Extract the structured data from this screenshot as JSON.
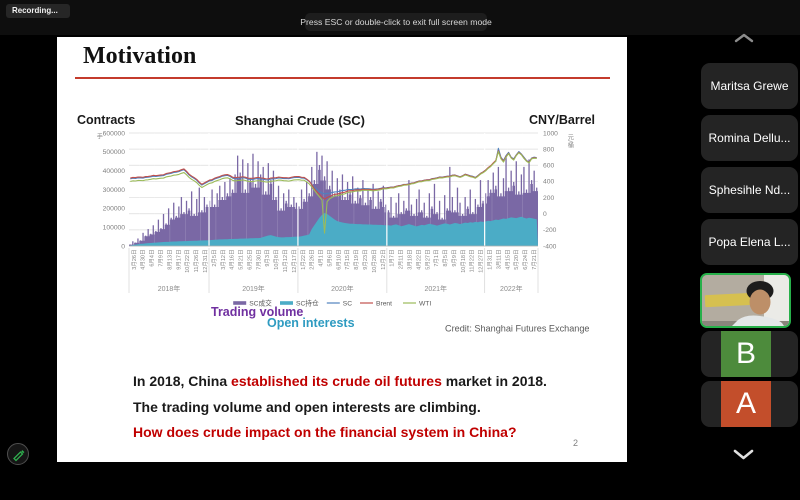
{
  "top_bar": {
    "recording_label": "Recording...",
    "tooltip": "Press ESC or double-click to exit full screen mode"
  },
  "slide": {
    "title": "Motivation",
    "page_number": "2",
    "credit": "Credit: Shanghai Futures Exchange",
    "annotations": {
      "trading_volume": "Trading volume",
      "open_interests": "Open interests"
    },
    "body": {
      "line1": [
        {
          "text": "In 2018, China ",
          "color": "#1a1a1a"
        },
        {
          "text": "established its crude oil futures",
          "color": "#C00000"
        },
        {
          "text": " market in 2018.",
          "color": "#1a1a1a"
        }
      ],
      "line2": [
        {
          "text": "The trading volume and open interests are climbing.",
          "color": "#1a1a1a"
        }
      ],
      "line3": [
        {
          "text": "How does crude impact on the financial system in China?",
          "color": "#C00000"
        }
      ]
    }
  },
  "chart_data": {
    "type": "combo-bar-area-line",
    "title": "Shanghai Crude (SC)",
    "left_axis": {
      "title": "Contracts",
      "unit": "手",
      "min": 0,
      "max": 600000,
      "tick_step": 100000
    },
    "right_axis": {
      "title": "CNY/Barrel",
      "unit": "元/桶",
      "min": -400,
      "max": 1000,
      "tick_step": 200
    },
    "x_labels": [
      "3月26日",
      "4月30日",
      "6月4日",
      "7月9日",
      "8月13日",
      "9月17日",
      "10月22日",
      "11月26日",
      "12月31日",
      "2月5日",
      "3月12日",
      "4月16日",
      "5月21日",
      "6月25日",
      "7月30日",
      "9月3日",
      "10月8日",
      "11月12日",
      "12月17日",
      "1月22日",
      "2月26日",
      "4月1日",
      "5月6日",
      "6月10日",
      "7月15日",
      "8月19日",
      "9月23日",
      "10月28日",
      "12月2日",
      "1月7日",
      "2月11日",
      "3月18日",
      "4月22日",
      "5月27日",
      "7月1日",
      "8月5日",
      "9月9日",
      "10月18日",
      "11月22日",
      "12月27日",
      "1月31日",
      "3月11日",
      "4月15日",
      "5月20日",
      "6月24日",
      "7月21日"
    ],
    "years": [
      {
        "label": "2018年",
        "count": 9
      },
      {
        "label": "2019年",
        "count": 10
      },
      {
        "label": "2020年",
        "count": 10
      },
      {
        "label": "2021年",
        "count": 11
      },
      {
        "label": "2022年",
        "count": 6
      }
    ],
    "volume_unit": "thousand contracts",
    "series": [
      {
        "name": "SC成交",
        "kind": "bar",
        "axis": "left",
        "color": "#7A68A5",
        "values": [
          8,
          25,
          18,
          40,
          30,
          70,
          55,
          90,
          65,
          110,
          80,
          140,
          95,
          170,
          120,
          200,
          150,
          230,
          160,
          210,
          260,
          180,
          240,
          200,
          290,
          170,
          250,
          310,
          190,
          260,
          220,
          240,
          300,
          220,
          280,
          320,
          260,
          340,
          280,
          360,
          300,
          380,
          480,
          390,
          460,
          300,
          440,
          360,
          490,
          330,
          450,
          380,
          420,
          290,
          440,
          350,
          400,
          260,
          320,
          200,
          280,
          240,
          300,
          220,
          260,
          230,
          210,
          300,
          250,
          340,
          280,
          420,
          350,
          500,
          430,
          480,
          370,
          450,
          320,
          400,
          280,
          360,
          300,
          380,
          260,
          340,
          290,
          370,
          240,
          310,
          270,
          350,
          230,
          300,
          260,
          330,
          210,
          290,
          250,
          320,
          220,
          190,
          260,
          160,
          230,
          280,
          180,
          240,
          200,
          350,
          220,
          170,
          250,
          300,
          190,
          230,
          160,
          280,
          210,
          330,
          180,
          240,
          150,
          270,
          200,
          420,
          260,
          190,
          310,
          230,
          170,
          260,
          210,
          300,
          180,
          250,
          220,
          350,
          240,
          280,
          350,
          300,
          390,
          320,
          420,
          280,
          360,
          480,
          310,
          400,
          340,
          450,
          290,
          380,
          420,
          300,
          460,
          350,
          400,
          310
        ]
      },
      {
        "name": "SC持仓",
        "kind": "area",
        "axis": "left",
        "color": "#4BACC6",
        "values": [
          3,
          5,
          7,
          9,
          11,
          12,
          14,
          15,
          16,
          17,
          18,
          19,
          20,
          21,
          22,
          22,
          23,
          24,
          24,
          25,
          25,
          26,
          26,
          27,
          27,
          28,
          28,
          29,
          29,
          30,
          30,
          31,
          32,
          33,
          34,
          35,
          35,
          36,
          36,
          37,
          37,
          38,
          38,
          39,
          39,
          40,
          40,
          41,
          41,
          42,
          42,
          43,
          48,
          52,
          56,
          58,
          54,
          50,
          47,
          46,
          46,
          47,
          47,
          48,
          49,
          50,
          50,
          52,
          55,
          58,
          62,
          90,
          110,
          130,
          150,
          165,
          175,
          170,
          160,
          150,
          140,
          132,
          128,
          125,
          122,
          120,
          118,
          118,
          117,
          116,
          116,
          115,
          115,
          114,
          114,
          113,
          113,
          112,
          112,
          111,
          110,
          110,
          108,
          112,
          115,
          110,
          105,
          108,
          112,
          116,
          112,
          108,
          104,
          108,
          112,
          110,
          114,
          118,
          115,
          112,
          108,
          112,
          116,
          120,
          118,
          114,
          118,
          122,
          120,
          116,
          120,
          124,
          122,
          126,
          124,
          128,
          126,
          130,
          128,
          130,
          134,
          132,
          136,
          140,
          138,
          142,
          146,
          144,
          148,
          152,
          150,
          148,
          152,
          155,
          150,
          146,
          150,
          148,
          145,
          142
        ]
      },
      {
        "name": "SC",
        "kind": "line",
        "axis": "right",
        "color": "#4F81BD",
        "anchors": [
          [
            0,
            432
          ],
          [
            6,
            450
          ],
          [
            12,
            470
          ],
          [
            18,
            515
          ],
          [
            21,
            545
          ],
          [
            23,
            480
          ],
          [
            26,
            415
          ],
          [
            28,
            355
          ],
          [
            30,
            390
          ],
          [
            33,
            430
          ],
          [
            36,
            465
          ],
          [
            38,
            475
          ],
          [
            41,
            432
          ],
          [
            44,
            448
          ],
          [
            47,
            425
          ],
          [
            50,
            437
          ],
          [
            53,
            420
          ],
          [
            56,
            432
          ],
          [
            59,
            440
          ],
          [
            62,
            434
          ],
          [
            65,
            450
          ],
          [
            68,
            440
          ],
          [
            70,
            400
          ],
          [
            72,
            330
          ],
          [
            74,
            275
          ],
          [
            76,
            245
          ],
          [
            78,
            255
          ],
          [
            80,
            270
          ],
          [
            83,
            288
          ],
          [
            86,
            300
          ],
          [
            89,
            308
          ],
          [
            92,
            310
          ],
          [
            95,
            302
          ],
          [
            98,
            315
          ],
          [
            100,
            320
          ],
          [
            104,
            340
          ],
          [
            108,
            365
          ],
          [
            112,
            395
          ],
          [
            116,
            420
          ],
          [
            120,
            445
          ],
          [
            124,
            465
          ],
          [
            127,
            480
          ],
          [
            129,
            458
          ],
          [
            131,
            490
          ],
          [
            133,
            470
          ],
          [
            135,
            450
          ],
          [
            137,
            500
          ],
          [
            139,
            540
          ],
          [
            141,
            590
          ],
          [
            143,
            650
          ],
          [
            144,
            810
          ],
          [
            145,
            700
          ],
          [
            146,
            660
          ],
          [
            147,
            720
          ],
          [
            148,
            760
          ],
          [
            149,
            700
          ],
          [
            150,
            680
          ],
          [
            151,
            730
          ],
          [
            152,
            770
          ],
          [
            153,
            740
          ],
          [
            154,
            700
          ],
          [
            155,
            660
          ],
          [
            156,
            640
          ],
          [
            157,
            690
          ],
          [
            158,
            700
          ],
          [
            159,
            695
          ]
        ]
      },
      {
        "name": "Brent",
        "kind": "line",
        "axis": "right",
        "color": "#C0504D",
        "anchors": [
          [
            0,
            442
          ],
          [
            6,
            460
          ],
          [
            12,
            480
          ],
          [
            18,
            525
          ],
          [
            21,
            555
          ],
          [
            23,
            490
          ],
          [
            26,
            425
          ],
          [
            28,
            365
          ],
          [
            30,
            400
          ],
          [
            33,
            440
          ],
          [
            36,
            475
          ],
          [
            38,
            485
          ],
          [
            41,
            445
          ],
          [
            44,
            458
          ],
          [
            47,
            438
          ],
          [
            50,
            450
          ],
          [
            53,
            433
          ],
          [
            56,
            445
          ],
          [
            59,
            450
          ],
          [
            62,
            444
          ],
          [
            65,
            460
          ],
          [
            68,
            450
          ],
          [
            70,
            405
          ],
          [
            72,
            310
          ],
          [
            74,
            240
          ],
          [
            76,
            180
          ],
          [
            78,
            215
          ],
          [
            80,
            240
          ],
          [
            83,
            262
          ],
          [
            86,
            285
          ],
          [
            89,
            296
          ],
          [
            92,
            300
          ],
          [
            95,
            295
          ],
          [
            98,
            310
          ],
          [
            100,
            315
          ],
          [
            104,
            338
          ],
          [
            108,
            362
          ],
          [
            112,
            392
          ],
          [
            116,
            418
          ],
          [
            120,
            442
          ],
          [
            124,
            462
          ],
          [
            127,
            478
          ],
          [
            129,
            455
          ],
          [
            131,
            488
          ],
          [
            133,
            465
          ],
          [
            135,
            445
          ],
          [
            137,
            498
          ],
          [
            139,
            540
          ],
          [
            141,
            595
          ],
          [
            143,
            660
          ],
          [
            144,
            780
          ],
          [
            145,
            690
          ],
          [
            146,
            650
          ],
          [
            147,
            710
          ],
          [
            148,
            750
          ],
          [
            149,
            695
          ],
          [
            150,
            670
          ],
          [
            151,
            725
          ],
          [
            152,
            760
          ],
          [
            153,
            735
          ],
          [
            154,
            690
          ],
          [
            155,
            655
          ],
          [
            156,
            635
          ],
          [
            157,
            685
          ],
          [
            158,
            695
          ],
          [
            159,
            690
          ]
        ]
      },
      {
        "name": "WTI",
        "kind": "line",
        "axis": "right",
        "color": "#9BBB59",
        "anchors": [
          [
            0,
            400
          ],
          [
            6,
            418
          ],
          [
            12,
            440
          ],
          [
            18,
            480
          ],
          [
            21,
            510
          ],
          [
            23,
            450
          ],
          [
            26,
            385
          ],
          [
            28,
            325
          ],
          [
            30,
            360
          ],
          [
            33,
            400
          ],
          [
            36,
            435
          ],
          [
            38,
            445
          ],
          [
            41,
            405
          ],
          [
            44,
            418
          ],
          [
            47,
            398
          ],
          [
            50,
            410
          ],
          [
            53,
            393
          ],
          [
            56,
            405
          ],
          [
            59,
            415
          ],
          [
            62,
            404
          ],
          [
            65,
            420
          ],
          [
            68,
            415
          ],
          [
            70,
            370
          ],
          [
            72,
            290
          ],
          [
            74,
            210
          ],
          [
            75,
            170
          ],
          [
            76,
            -240
          ],
          [
            77,
            150
          ],
          [
            78,
            185
          ],
          [
            80,
            220
          ],
          [
            83,
            240
          ],
          [
            86,
            268
          ],
          [
            89,
            282
          ],
          [
            92,
            290
          ],
          [
            95,
            283
          ],
          [
            98,
            298
          ],
          [
            100,
            308
          ],
          [
            104,
            330
          ],
          [
            108,
            355
          ],
          [
            112,
            385
          ],
          [
            116,
            410
          ],
          [
            120,
            435
          ],
          [
            124,
            455
          ],
          [
            127,
            470
          ],
          [
            129,
            450
          ],
          [
            131,
            480
          ],
          [
            133,
            458
          ],
          [
            135,
            440
          ],
          [
            137,
            490
          ],
          [
            139,
            530
          ],
          [
            141,
            585
          ],
          [
            143,
            650
          ],
          [
            144,
            770
          ],
          [
            145,
            680
          ],
          [
            146,
            640
          ],
          [
            147,
            700
          ],
          [
            148,
            745
          ],
          [
            149,
            690
          ],
          [
            150,
            665
          ],
          [
            151,
            720
          ],
          [
            152,
            755
          ],
          [
            153,
            730
          ],
          [
            154,
            685
          ],
          [
            155,
            650
          ],
          [
            156,
            630
          ],
          [
            157,
            680
          ],
          [
            158,
            688
          ],
          [
            159,
            685
          ]
        ]
      }
    ]
  },
  "sidebar": {
    "participants": [
      {
        "name": "Maritsa Grewe"
      },
      {
        "name": "Romina Dellu..."
      },
      {
        "name": "Sphesihle Nd..."
      },
      {
        "name": "Popa Elena L..."
      }
    ],
    "avatars": [
      {
        "initial": "B",
        "color": "#4D8B3C"
      },
      {
        "initial": "A",
        "color": "#C34E2B"
      }
    ]
  }
}
